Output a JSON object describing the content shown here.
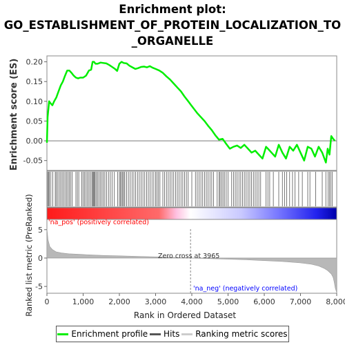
{
  "title_lines": [
    "Enrichment plot:",
    "GO_ESTABLISHMENT_OF_PROTEIN_LOCALIZATION_TO",
    "_ORGANELLE"
  ],
  "colors": {
    "es": "#00ee00",
    "hits": "#555555",
    "metric": "#b8b8b8",
    "pos": "#ff0000",
    "neg": "#0000ff"
  },
  "legend": [
    {
      "label": "Enrichment profile",
      "color": "#00ee00"
    },
    {
      "label": "Hits",
      "color": "#555555"
    },
    {
      "label": "Ranking metric scores",
      "color": "#cccccc"
    }
  ],
  "chart_data": {
    "type": "line",
    "title": "Enrichment plot: GO_ESTABLISHMENT_OF_PROTEIN_LOCALIZATION_TO_ORGANELLE",
    "xlabel": "Rank in Ordered Dataset",
    "xlim": [
      0,
      8000
    ],
    "x_ticks": [
      0,
      1000,
      2000,
      3000,
      4000,
      5000,
      6000,
      7000,
      8000
    ],
    "x_tick_labels": [
      "0",
      "1,000",
      "2,000",
      "3,000",
      "4,000",
      "5,000",
      "6,000",
      "7,000",
      "8,000"
    ],
    "es_panel": {
      "ylabel": "Enrichment score (ES)",
      "ylim": [
        -0.075,
        0.215
      ],
      "y_ticks": [
        -0.05,
        0.0,
        0.05,
        0.1,
        0.15,
        0.2
      ],
      "y_tick_labels": [
        "-0.05",
        "0.00",
        "0.05",
        "0.10",
        "0.15",
        "0.20"
      ],
      "series": [
        {
          "name": "Enrichment profile",
          "x": [
            0,
            20,
            60,
            100,
            150,
            200,
            260,
            320,
            380,
            440,
            500,
            560,
            620,
            680,
            740,
            800,
            860,
            920,
            1000,
            1080,
            1160,
            1220,
            1260,
            1300,
            1340,
            1400,
            1480,
            1560,
            1640,
            1720,
            1800,
            1880,
            1940,
            2000,
            2060,
            2120,
            2200,
            2280,
            2360,
            2440,
            2520,
            2600,
            2680,
            2760,
            2840,
            2920,
            3000,
            3100,
            3200,
            3300,
            3400,
            3500,
            3600,
            3700,
            3800,
            3900,
            3965,
            4050,
            4150,
            4250,
            4350,
            4450,
            4550,
            4650,
            4750,
            4850,
            4950,
            5050,
            5150,
            5250,
            5350,
            5450,
            5550,
            5650,
            5750,
            5850,
            5950,
            6050,
            6100,
            6200,
            6300,
            6400,
            6500,
            6600,
            6700,
            6800,
            6900,
            7000,
            7100,
            7200,
            7300,
            7400,
            7500,
            7600,
            7700,
            7750,
            7800,
            7850,
            7900,
            7950
          ],
          "y": [
            -0.005,
            0.06,
            0.1,
            0.095,
            0.09,
            0.1,
            0.11,
            0.125,
            0.14,
            0.15,
            0.165,
            0.178,
            0.178,
            0.172,
            0.165,
            0.16,
            0.158,
            0.16,
            0.16,
            0.165,
            0.178,
            0.18,
            0.2,
            0.2,
            0.195,
            0.195,
            0.198,
            0.197,
            0.196,
            0.192,
            0.187,
            0.182,
            0.177,
            0.195,
            0.2,
            0.197,
            0.196,
            0.19,
            0.186,
            0.182,
            0.184,
            0.187,
            0.188,
            0.186,
            0.189,
            0.185,
            0.182,
            0.178,
            0.172,
            0.163,
            0.155,
            0.145,
            0.135,
            0.125,
            0.112,
            0.1,
            0.092,
            0.082,
            0.07,
            0.06,
            0.05,
            0.038,
            0.027,
            0.014,
            0.003,
            0.005,
            -0.008,
            -0.02,
            -0.015,
            -0.012,
            -0.018,
            -0.01,
            -0.02,
            -0.03,
            -0.025,
            -0.035,
            -0.045,
            -0.015,
            -0.02,
            -0.03,
            -0.04,
            -0.01,
            -0.03,
            -0.045,
            -0.015,
            -0.025,
            -0.01,
            -0.03,
            -0.05,
            -0.015,
            -0.02,
            -0.04,
            -0.015,
            -0.03,
            -0.055,
            -0.02,
            -0.035,
            0.012,
            0.005,
            0.0
          ]
        }
      ]
    },
    "hits_ranks": [
      20,
      45,
      70,
      110,
      160,
      230,
      260,
      300,
      340,
      380,
      420,
      460,
      500,
      540,
      580,
      620,
      660,
      700,
      800,
      840,
      880,
      960,
      1000,
      1040,
      1080,
      1120,
      1160,
      1200,
      1240,
      1265,
      1290,
      1310,
      1330,
      1360,
      1400,
      1440,
      1480,
      1520,
      1560,
      1600,
      1650,
      1700,
      1750,
      1800,
      1860,
      1950,
      2000,
      2030,
      2060,
      2090,
      2120,
      2150,
      2200,
      2250,
      2300,
      2350,
      2400,
      2450,
      2500,
      2550,
      2600,
      2650,
      2700,
      2750,
      2800,
      2850,
      2900,
      2950,
      3000,
      3040,
      3080,
      3120,
      3200,
      3250,
      3300,
      3350,
      3400,
      3450,
      3500,
      3550,
      3600,
      3650,
      3700,
      3750,
      3800,
      3850,
      3900,
      4000,
      4100,
      4150,
      4200,
      4250,
      4300,
      4350,
      4400,
      4450,
      4500,
      4550,
      4600,
      4700,
      4750,
      4780,
      4820,
      4860,
      4900,
      4950,
      5000,
      5100,
      5150,
      5200,
      5250,
      5300,
      5350,
      5400,
      5450,
      5500,
      5550,
      5600,
      5650,
      5700,
      5750,
      5800,
      5850,
      5900,
      6050,
      6100,
      6150,
      6250,
      6400,
      6500,
      6560,
      6620,
      6700,
      6780,
      6850,
      6950,
      7050,
      7200,
      7260,
      7420,
      7600,
      7700,
      7760,
      7800,
      7840,
      7880
    ],
    "metric_panel": {
      "ylabel": "Ranked list metric (PreRanked)",
      "ylim": [
        -6.2,
        6.8
      ],
      "y_ticks": [
        -5,
        0,
        5
      ],
      "y_tick_labels": [
        "-5",
        "0",
        "5"
      ],
      "series": [
        {
          "name": "Ranking metric scores",
          "x": [
            0,
            30,
            80,
            150,
            250,
            400,
            600,
            900,
            1200,
            1600,
            2000,
            2500,
            3000,
            3500,
            3965,
            4500,
            5000,
            5500,
            6000,
            6500,
            7000,
            7300,
            7500,
            7650,
            7750,
            7850,
            7900,
            7930,
            7960,
            8000
          ],
          "y": [
            5.2,
            3.2,
            2.0,
            1.5,
            1.1,
            0.9,
            0.75,
            0.65,
            0.55,
            0.45,
            0.38,
            0.3,
            0.2,
            0.1,
            0.0,
            -0.1,
            -0.2,
            -0.3,
            -0.45,
            -0.6,
            -0.85,
            -1.1,
            -1.4,
            -1.8,
            -2.2,
            -2.8,
            -3.4,
            -4.2,
            -5.3,
            -6.1
          ]
        }
      ],
      "zero_cross_label": "Zero cross at 3965",
      "zero_cross_rank": 3965,
      "pos_label": "'na_pos' (positively correlated)",
      "neg_label": "'na_neg' (negatively correlated)"
    }
  }
}
